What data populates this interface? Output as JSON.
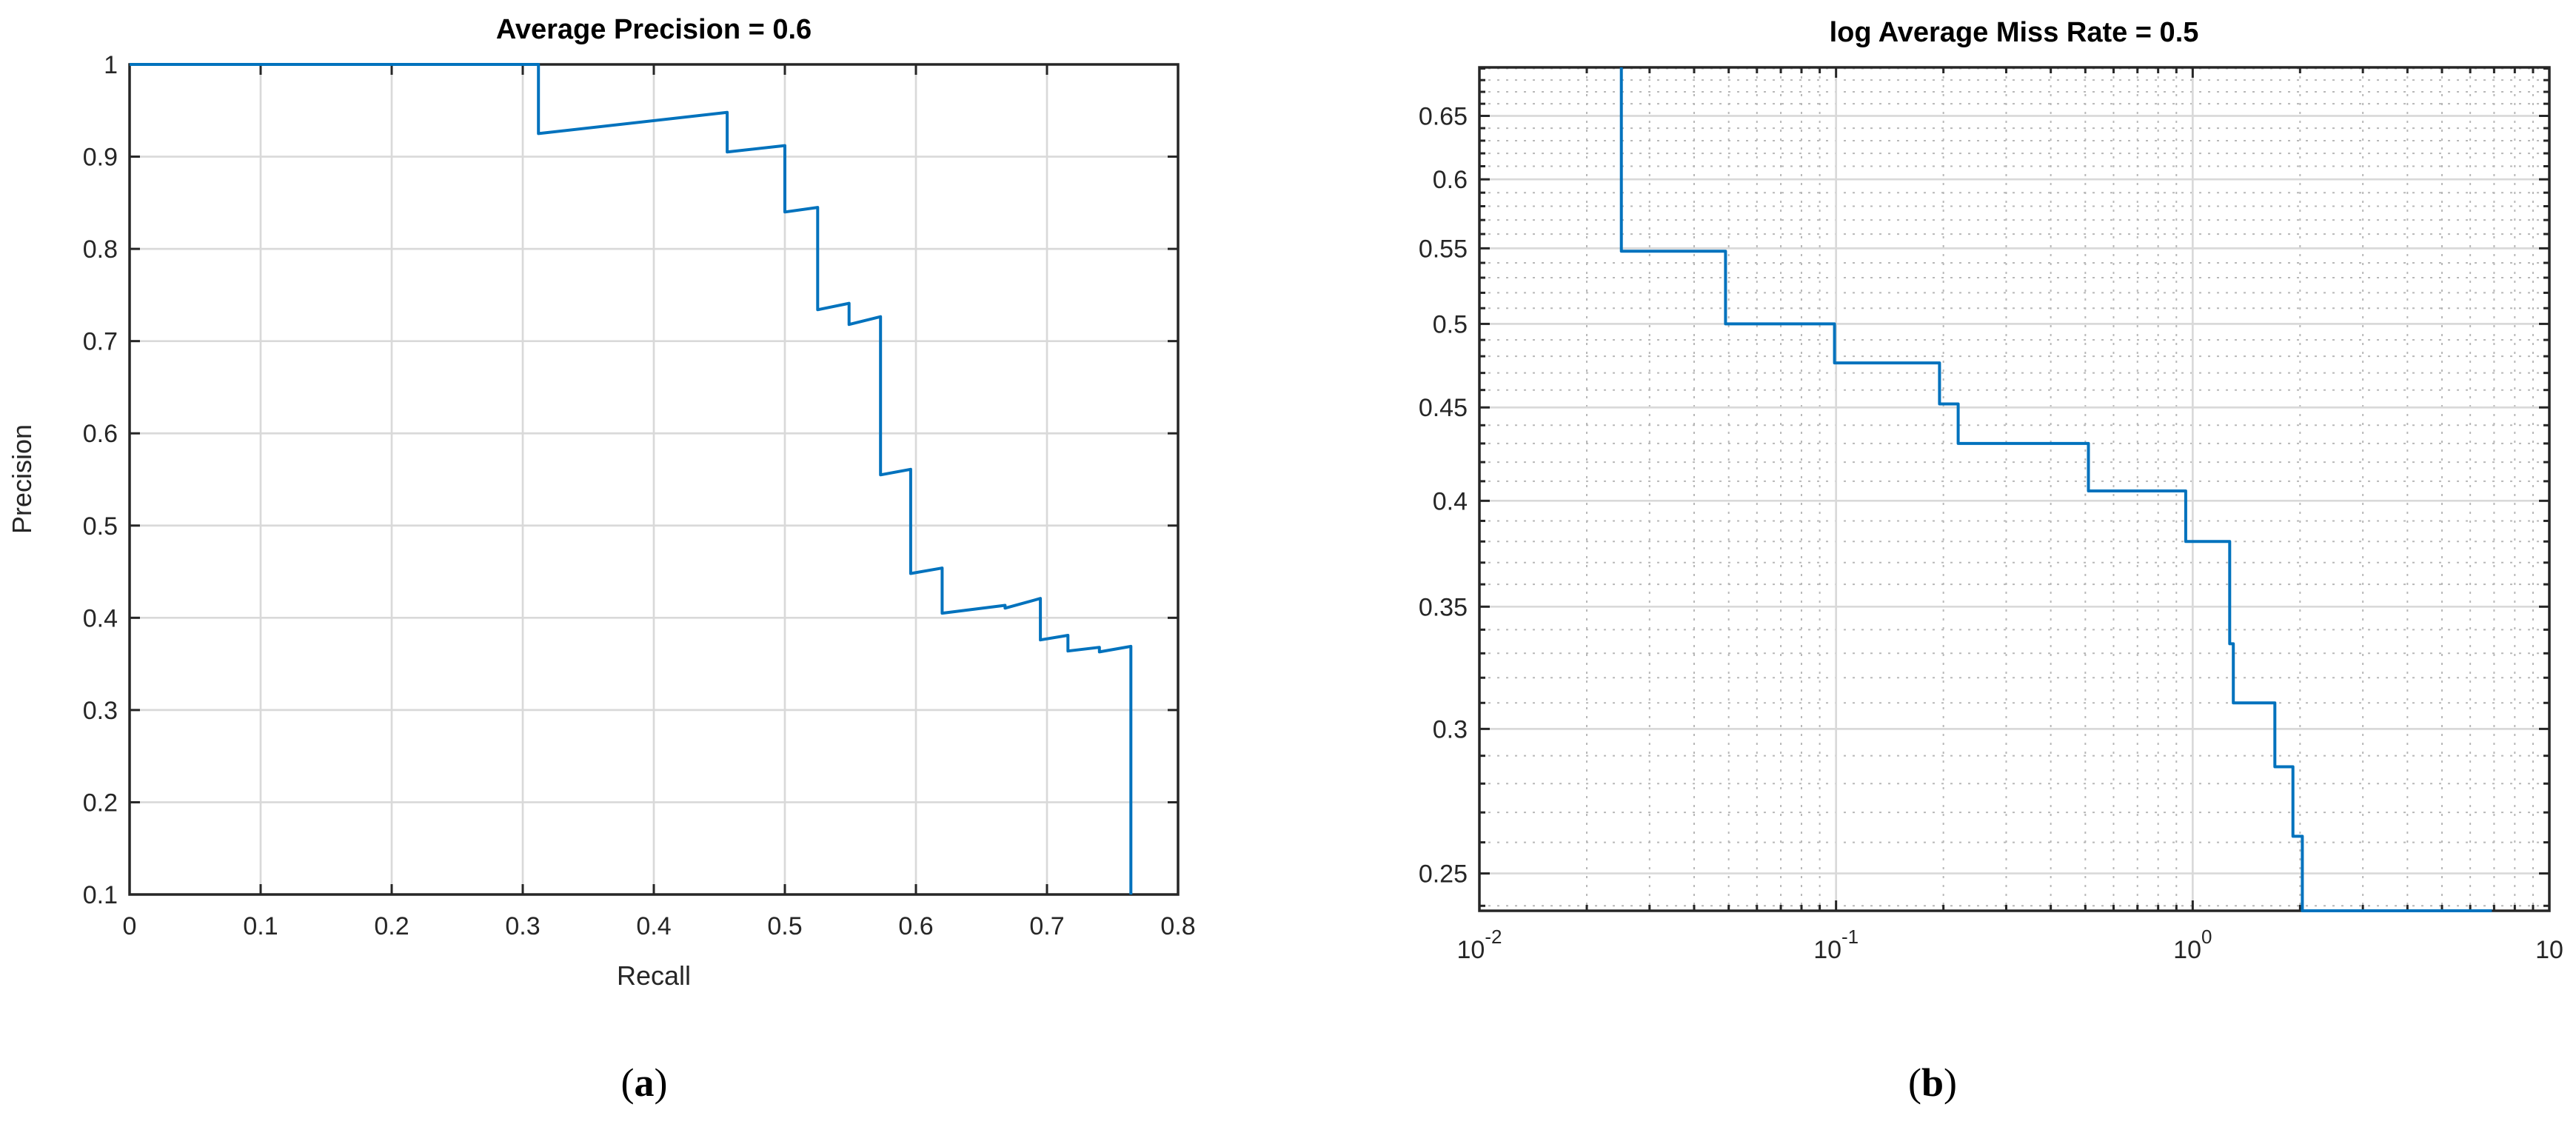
{
  "figure": {
    "background": "#ffffff",
    "accent_blue": "#0072BD",
    "axis_color": "#262626",
    "major_grid_color": "#d9d9d9",
    "minor_grid_color": "#b8b8b8",
    "captions": {
      "a": {
        "open": "(",
        "letter": "a",
        "close": ")"
      },
      "b": {
        "open": "(",
        "letter": "b",
        "close": ")"
      }
    }
  },
  "chart_data": [
    {
      "id": "pr-curve",
      "type": "line",
      "title": "Average Precision = 0.6",
      "xlabel": "Recall",
      "ylabel": "Precision",
      "xscale": "linear",
      "yscale": "linear",
      "xlim": [
        0,
        0.8
      ],
      "ylim": [
        0.1,
        1.0
      ],
      "grid": true,
      "legend": "none",
      "line_color": "#0072BD",
      "xticks": [
        {
          "v": 0,
          "l": "0"
        },
        {
          "v": 0.1,
          "l": "0.1"
        },
        {
          "v": 0.2,
          "l": "0.2"
        },
        {
          "v": 0.3,
          "l": "0.3"
        },
        {
          "v": 0.4,
          "l": "0.4"
        },
        {
          "v": 0.5,
          "l": "0.5"
        },
        {
          "v": 0.6,
          "l": "0.6"
        },
        {
          "v": 0.7,
          "l": "0.7"
        },
        {
          "v": 0.8,
          "l": "0.8"
        }
      ],
      "yticks": [
        {
          "v": 0.1,
          "l": "0.1"
        },
        {
          "v": 0.2,
          "l": "0.2"
        },
        {
          "v": 0.3,
          "l": "0.3"
        },
        {
          "v": 0.4,
          "l": "0.4"
        },
        {
          "v": 0.5,
          "l": "0.5"
        },
        {
          "v": 0.6,
          "l": "0.6"
        },
        {
          "v": 0.7,
          "l": "0.7"
        },
        {
          "v": 0.8,
          "l": "0.8"
        },
        {
          "v": 0.9,
          "l": "0.9"
        },
        {
          "v": 1.0,
          "l": "1"
        }
      ],
      "points": [
        [
          0,
          1.0
        ],
        [
          0.312,
          1.0
        ],
        [
          0.312,
          0.925
        ],
        [
          0.456,
          0.948
        ],
        [
          0.456,
          0.905
        ],
        [
          0.5,
          0.912
        ],
        [
          0.5,
          0.84
        ],
        [
          0.525,
          0.845
        ],
        [
          0.525,
          0.734
        ],
        [
          0.549,
          0.741
        ],
        [
          0.549,
          0.718
        ],
        [
          0.573,
          0.7265
        ],
        [
          0.573,
          0.555
        ],
        [
          0.596,
          0.561
        ],
        [
          0.596,
          0.448
        ],
        [
          0.62,
          0.454
        ],
        [
          0.62,
          0.405
        ],
        [
          0.668,
          0.4135
        ],
        [
          0.668,
          0.4105
        ],
        [
          0.695,
          0.421
        ],
        [
          0.695,
          0.376
        ],
        [
          0.716,
          0.381
        ],
        [
          0.716,
          0.364
        ],
        [
          0.74,
          0.368
        ],
        [
          0.74,
          0.363
        ],
        [
          0.764,
          0.369
        ],
        [
          0.764,
          0.1
        ]
      ]
    },
    {
      "id": "miss-rate-curve",
      "type": "line",
      "title": "log Average Miss Rate = 0.5",
      "xlabel": "",
      "ylabel": "",
      "xscale": "log",
      "yscale": "log",
      "xlim": [
        0.01,
        10
      ],
      "ylim": [
        0.2385,
        0.691
      ],
      "grid": true,
      "minor_grid": true,
      "legend": "none",
      "line_color": "#0072BD",
      "xticks": [
        {
          "v": 0.01,
          "b": "10",
          "e": "-2"
        },
        {
          "v": 0.1,
          "b": "10",
          "e": "-1"
        },
        {
          "v": 1,
          "b": "10",
          "e": "0"
        },
        {
          "v": 10,
          "b": "10",
          "e": ""
        }
      ],
      "yticks": [
        {
          "v": 0.25,
          "l": "0.25"
        },
        {
          "v": 0.3,
          "l": "0.3"
        },
        {
          "v": 0.35,
          "l": "0.35"
        },
        {
          "v": 0.4,
          "l": "0.4"
        },
        {
          "v": 0.45,
          "l": "0.45"
        },
        {
          "v": 0.5,
          "l": "0.5"
        },
        {
          "v": 0.55,
          "l": "0.55"
        },
        {
          "v": 0.6,
          "l": "0.6"
        },
        {
          "v": 0.65,
          "l": "0.65"
        }
      ],
      "y_minor_step": 0.01,
      "points": [
        [
          0.025,
          0.691
        ],
        [
          0.025,
          0.548
        ],
        [
          0.049,
          0.548
        ],
        [
          0.049,
          0.5
        ],
        [
          0.099,
          0.5
        ],
        [
          0.099,
          0.476
        ],
        [
          0.195,
          0.476
        ],
        [
          0.195,
          0.452
        ],
        [
          0.22,
          0.452
        ],
        [
          0.22,
          0.43
        ],
        [
          0.51,
          0.43
        ],
        [
          0.51,
          0.405
        ],
        [
          0.956,
          0.405
        ],
        [
          0.956,
          0.38
        ],
        [
          1.27,
          0.38
        ],
        [
          1.27,
          0.334
        ],
        [
          1.3,
          0.334
        ],
        [
          1.3,
          0.31
        ],
        [
          1.7,
          0.31
        ],
        [
          1.7,
          0.286
        ],
        [
          1.91,
          0.286
        ],
        [
          1.91,
          0.262
        ],
        [
          2.03,
          0.262
        ],
        [
          2.03,
          0.2385
        ],
        [
          6.9,
          0.2385
        ]
      ]
    }
  ]
}
